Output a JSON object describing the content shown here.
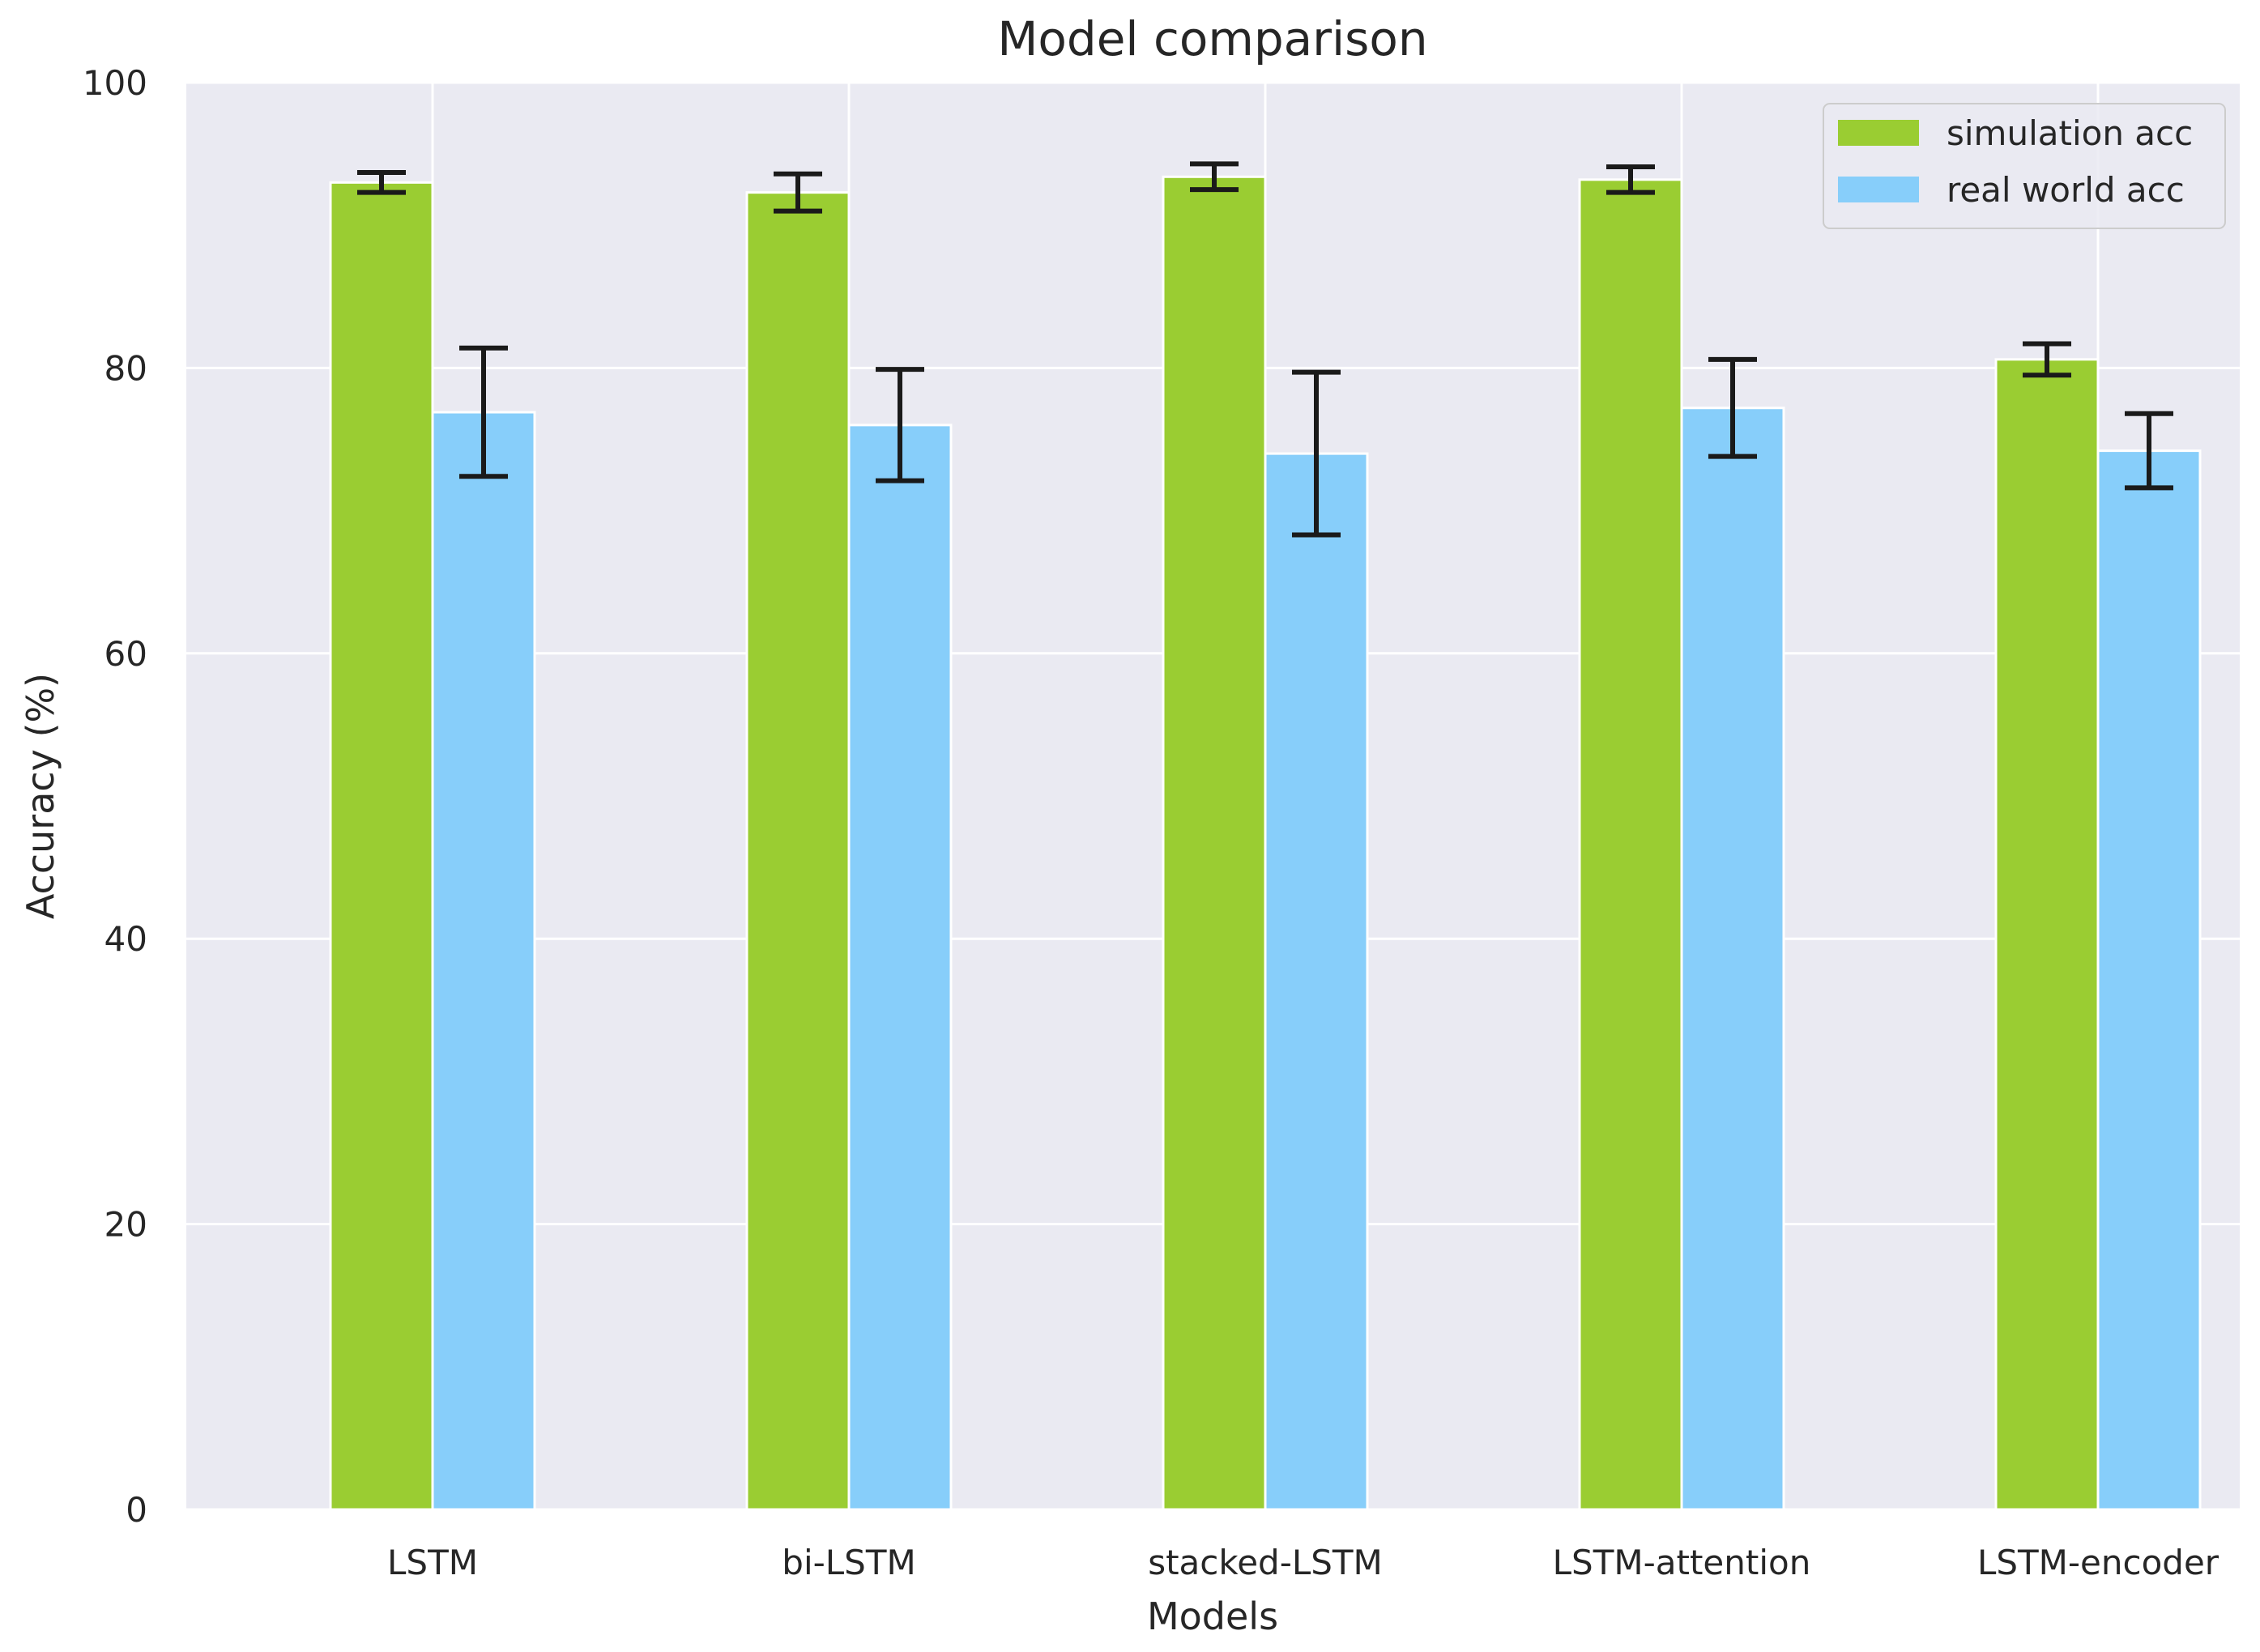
{
  "chart_data": {
    "type": "bar",
    "title": "Model comparison",
    "xlabel": "Models",
    "ylabel": "Accuracy (%)",
    "ylim": [
      0,
      100
    ],
    "yticks": [
      0,
      20,
      40,
      60,
      80,
      100
    ],
    "grid": true,
    "legend_position": "top-right",
    "categories": [
      "LSTM",
      "bi-LSTM",
      "stacked-LSTM",
      "LSTM-attention",
      "LSTM-encoder"
    ],
    "series": [
      {
        "name": "simulation acc",
        "color": "#9acd32",
        "values": [
          93.0,
          92.3,
          93.4,
          93.2,
          80.6
        ],
        "errors": [
          0.7,
          1.3,
          0.9,
          0.9,
          1.1
        ]
      },
      {
        "name": "real world acc",
        "color": "#87cefa",
        "values": [
          76.9,
          76.0,
          74.0,
          77.2,
          74.2
        ],
        "errors": [
          4.5,
          3.9,
          5.7,
          3.4,
          2.6
        ]
      }
    ],
    "colors": {
      "plot_background": "#eaeaf2",
      "grid": "#ffffff",
      "text": "#262626",
      "error_bar": "#1a1a1a"
    }
  }
}
